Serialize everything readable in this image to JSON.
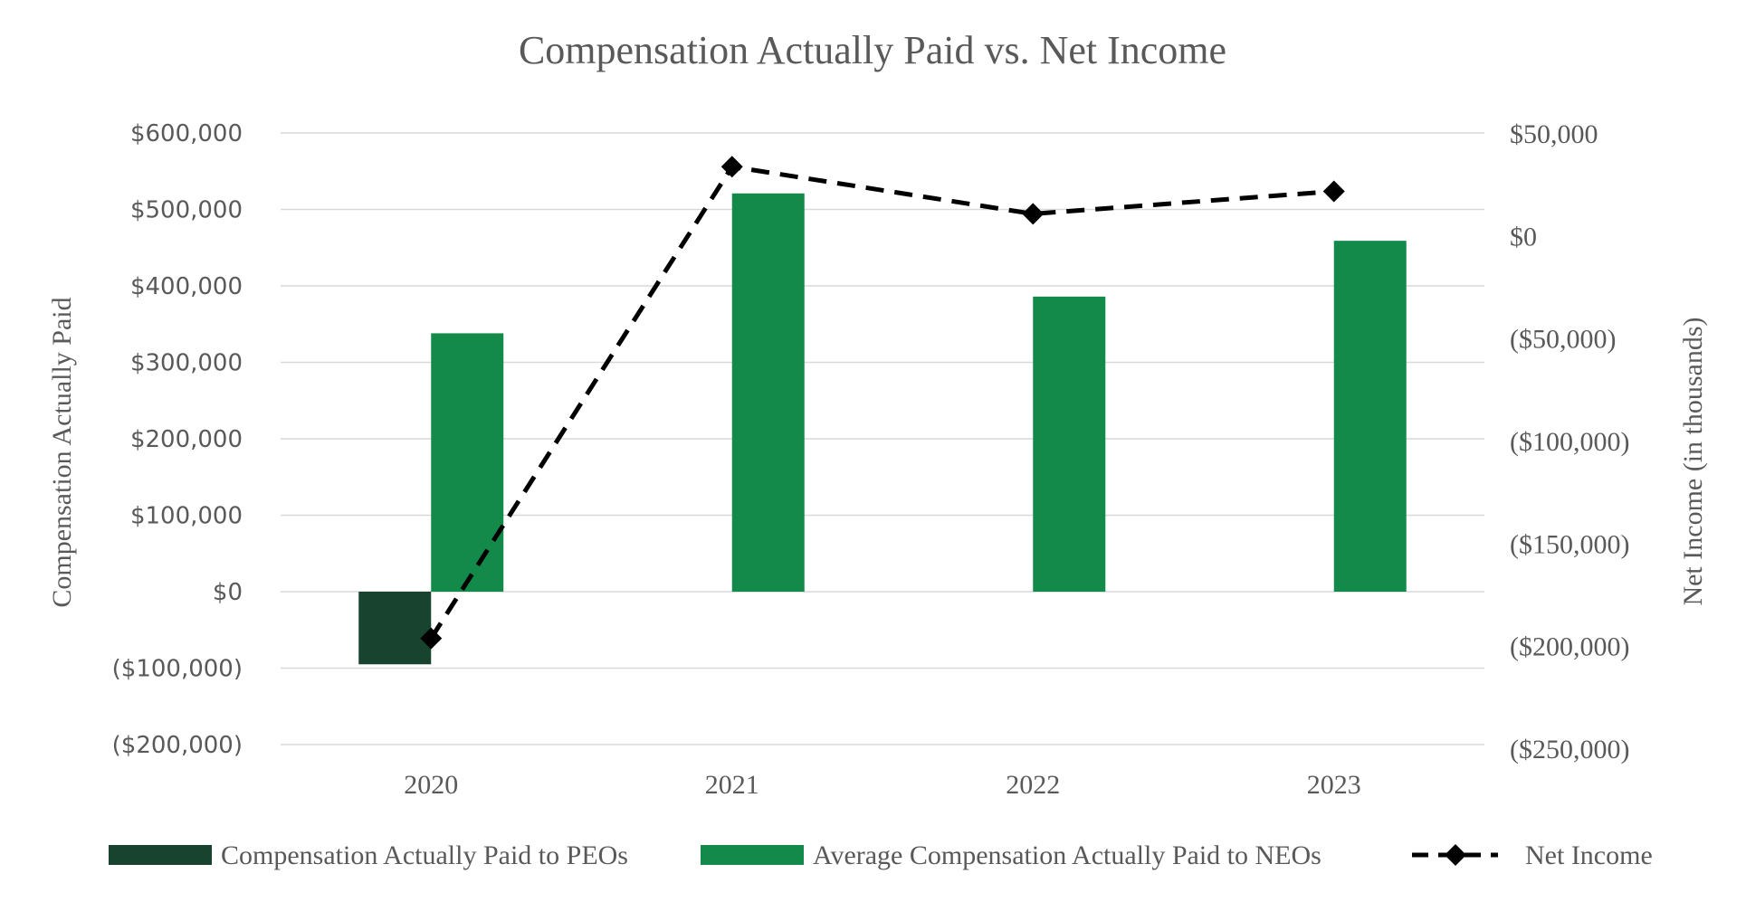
{
  "chart_data": {
    "type": "bar",
    "title": "Compensation Actually Paid vs. Net Income",
    "categories": [
      "2020",
      "2021",
      "2022",
      "2023"
    ],
    "ylabel": "Compensation Actually Paid",
    "y2label": "Net Income (in thousands)",
    "ylim": [
      -200000,
      600000
    ],
    "y2lim": [
      -250000,
      50000
    ],
    "yticks": [
      {
        "value": 600000,
        "label": "$600,000"
      },
      {
        "value": 500000,
        "label": "$500,000"
      },
      {
        "value": 400000,
        "label": "$400,000"
      },
      {
        "value": 300000,
        "label": "$300,000"
      },
      {
        "value": 200000,
        "label": "$200,000"
      },
      {
        "value": 100000,
        "label": "$100,000"
      },
      {
        "value": 0,
        "label": "$0"
      },
      {
        "value": -100000,
        "label": "($100,000)"
      },
      {
        "value": -200000,
        "label": "($200,000)"
      }
    ],
    "y2ticks": [
      {
        "value": 50000,
        "label": "$50,000"
      },
      {
        "value": 0,
        "label": "$0"
      },
      {
        "value": -50000,
        "label": "($50,000)"
      },
      {
        "value": -100000,
        "label": "($100,000)"
      },
      {
        "value": -150000,
        "label": "($150,000)"
      },
      {
        "value": -200000,
        "label": "($200,000)"
      },
      {
        "value": -250000,
        "label": "($250,000)"
      }
    ],
    "grid": true,
    "legend_position": "bottom",
    "series": [
      {
        "name": "Compensation Actually Paid to PEOs",
        "kind": "bar",
        "axis": "left",
        "color": "#17432f",
        "values": [
          -95000,
          null,
          null,
          null
        ]
      },
      {
        "name": "Average Compensation Actually Paid to NEOs",
        "kind": "bar",
        "axis": "left",
        "color": "#138a4a",
        "values": [
          338000,
          521000,
          386000,
          459000
        ]
      },
      {
        "name": "Net Income",
        "kind": "line",
        "axis": "right",
        "color": "#000000",
        "style": "dashed",
        "marker": "diamond",
        "values": [
          -196000,
          34000,
          11000,
          22000
        ]
      }
    ]
  }
}
